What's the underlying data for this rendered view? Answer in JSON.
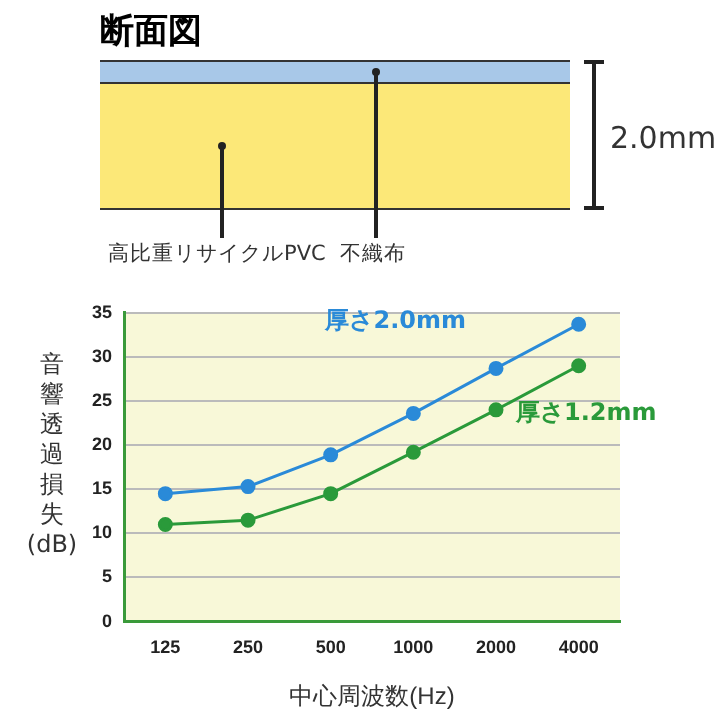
{
  "chart_data": {
    "type": "line",
    "title": "断面図",
    "annotations": [
      "高比重リサイクルPVC",
      "不織布",
      "2.0mm"
    ],
    "categories": [
      "125",
      "250",
      "500",
      "1000",
      "2000",
      "4000"
    ],
    "xlabel": "中心周波数(Hz)",
    "ylabel": "音響透過損失(dB)",
    "series": [
      {
        "name": "厚さ2.0mm",
        "color": "#2a8ad8",
        "values": [
          14.5,
          15.3,
          18.9,
          23.6,
          28.7,
          33.7
        ]
      },
      {
        "name": "厚さ1.2mm",
        "color": "#2a9a3a",
        "values": [
          11,
          11.5,
          14.5,
          19.2,
          24,
          29
        ]
      }
    ],
    "ylim": [
      0,
      35
    ],
    "yticks": [
      0,
      5,
      10,
      15,
      20,
      25,
      30,
      35
    ],
    "grid": "y",
    "legend": false,
    "marker": "circle",
    "line_style": "solid"
  }
}
